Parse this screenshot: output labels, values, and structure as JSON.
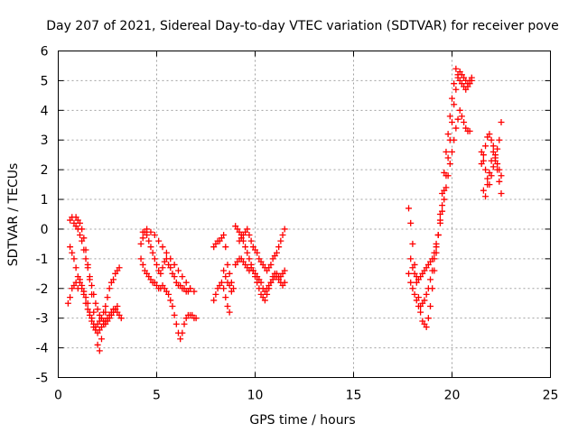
{
  "chart_data": {
    "type": "scatter",
    "title": "Day 207 of 2021, Sidereal Day-to-day VTEC variation (SDTVAR) for receiver pove",
    "xlabel": "GPS time / hours",
    "ylabel": "SDTVAR / TECUs",
    "xlim": [
      0,
      25
    ],
    "ylim": [
      -5,
      6
    ],
    "x_ticks": [
      "0",
      "5",
      "10",
      "15",
      "20",
      "25"
    ],
    "y_ticks": [
      "-5",
      "-4",
      "-3",
      "-2",
      "-1",
      "0",
      "1",
      "2",
      "3",
      "4",
      "5",
      "6"
    ],
    "grid": true,
    "marker": "+",
    "color": "#ff0000",
    "series": [
      {
        "x": [
          0.5,
          0.6,
          0.7,
          0.8,
          0.9,
          1.0,
          1.1,
          1.2,
          1.3,
          1.4,
          1.5,
          1.6,
          1.7,
          1.8,
          1.9,
          2.0,
          2.1,
          2.2,
          2.3,
          2.4,
          2.5,
          2.6,
          2.7,
          2.8,
          2.9,
          3.0,
          3.1,
          0.6,
          0.7,
          0.8,
          0.9,
          1.0,
          1.1,
          1.2,
          1.3,
          1.4,
          1.5,
          1.6,
          1.7,
          1.8,
          1.9,
          2.0,
          2.1,
          2.2,
          2.3,
          2.4,
          2.5,
          2.6,
          2.7,
          2.8,
          2.9,
          3.0,
          0.6,
          0.7,
          0.8,
          0.9,
          1.0,
          1.1,
          1.2,
          1.3,
          1.4,
          1.5,
          1.6,
          1.7,
          1.8,
          1.9,
          2.0,
          2.1,
          2.2,
          2.3,
          2.4,
          2.5,
          2.6,
          2.7,
          2.8,
          2.9,
          3.0,
          3.1,
          3.2,
          0.9,
          1.0,
          1.1,
          1.2,
          1.3,
          1.4,
          1.5,
          1.6,
          1.7,
          1.8,
          1.9,
          2.0,
          2.1,
          2.2,
          2.3,
          2.4
        ],
        "y": [
          -2.5,
          -2.3,
          -2.0,
          -1.9,
          -1.8,
          -2.0,
          -1.7,
          -1.9,
          -2.1,
          -2.3,
          -2.5,
          -2.8,
          -3.0,
          -3.2,
          -3.3,
          -3.2,
          -3.1,
          -3.0,
          -2.8,
          -2.6,
          -2.3,
          -2.0,
          -1.8,
          -1.7,
          -1.5,
          -1.4,
          -1.3,
          0.3,
          0.4,
          0.2,
          0.1,
          0.0,
          -0.2,
          -0.4,
          -0.7,
          -1.0,
          -1.3,
          -1.6,
          -1.9,
          -2.2,
          -2.5,
          -2.7,
          -2.9,
          -3.0,
          -3.1,
          -3.2,
          -3.1,
          -3.0,
          -2.9,
          -2.8,
          -2.7,
          -2.6,
          -0.6,
          -0.8,
          -1.0,
          -1.3,
          -1.6,
          -1.8,
          -2.0,
          -2.2,
          -2.5,
          -2.7,
          -2.9,
          -3.1,
          -3.3,
          -3.4,
          -3.5,
          -3.4,
          -3.3,
          -3.2,
          -3.1,
          -3.0,
          -2.9,
          -2.8,
          -2.7,
          -2.7,
          -2.8,
          -2.9,
          -3.0,
          0.4,
          0.3,
          0.2,
          0.0,
          -0.3,
          -0.7,
          -1.2,
          -1.7,
          -2.2,
          -2.8,
          -3.4,
          -3.9,
          -4.1,
          -3.7,
          -3.2,
          -2.8
        ]
      },
      {
        "x": [
          4.2,
          4.3,
          4.4,
          4.5,
          4.6,
          4.7,
          4.8,
          4.9,
          5.0,
          5.1,
          5.2,
          5.3,
          5.4,
          5.5,
          5.6,
          5.7,
          5.8,
          5.9,
          6.0,
          6.1,
          6.2,
          6.3,
          6.4,
          6.5,
          6.6,
          6.7,
          4.2,
          4.3,
          4.4,
          4.5,
          4.6,
          4.7,
          4.8,
          4.9,
          5.0,
          5.1,
          5.2,
          5.3,
          5.4,
          5.5,
          5.6,
          5.7,
          5.8,
          5.9,
          6.0,
          6.1,
          6.2,
          6.3,
          6.4,
          6.5,
          6.6,
          6.7,
          6.8,
          6.9,
          7.0,
          4.3,
          4.5,
          4.7,
          4.9,
          5.1,
          5.3,
          5.5,
          5.7,
          5.9,
          6.1,
          6.3,
          6.5,
          6.7,
          6.9
        ],
        "y": [
          -0.5,
          -0.3,
          -0.1,
          -0.2,
          -0.4,
          -0.6,
          -0.8,
          -1.0,
          -1.2,
          -1.4,
          -1.5,
          -1.3,
          -1.1,
          -1.0,
          -1.2,
          -1.3,
          -1.5,
          -1.6,
          -1.8,
          -1.9,
          -1.9,
          -2.0,
          -2.0,
          -2.1,
          -2.1,
          -2.0,
          -1.0,
          -1.2,
          -1.4,
          -1.5,
          -1.6,
          -1.7,
          -1.8,
          -1.8,
          -1.9,
          -2.0,
          -2.0,
          -1.9,
          -2.0,
          -2.1,
          -2.2,
          -2.4,
          -2.6,
          -2.9,
          -3.2,
          -3.5,
          -3.7,
          -3.5,
          -3.2,
          -3.0,
          -2.9,
          -2.9,
          -2.9,
          -3.0,
          -3.0,
          -0.1,
          0.0,
          -0.1,
          -0.2,
          -0.4,
          -0.6,
          -0.8,
          -1.0,
          -1.2,
          -1.4,
          -1.6,
          -1.8,
          -2.0,
          -2.1
        ]
      },
      {
        "x": [
          7.9,
          8.0,
          8.1,
          8.2,
          8.3,
          8.4,
          8.5,
          8.6,
          8.7,
          8.8,
          8.9,
          7.9,
          8.0,
          8.1,
          8.2,
          8.3,
          8.4,
          8.5,
          8.6,
          8.7,
          8.4,
          8.5,
          8.6,
          8.7,
          8.8
        ],
        "y": [
          -0.6,
          -0.5,
          -0.4,
          -0.4,
          -0.3,
          -0.2,
          -0.6,
          -1.2,
          -1.5,
          -1.8,
          -2.0,
          -2.4,
          -2.2,
          -2.0,
          -1.9,
          -1.8,
          -2.0,
          -2.3,
          -2.6,
          -2.8,
          -1.4,
          -1.6,
          -1.8,
          -1.9,
          -2.1
        ]
      },
      {
        "x": [
          9.0,
          9.1,
          9.2,
          9.3,
          9.4,
          9.5,
          9.6,
          9.7,
          9.8,
          9.9,
          10.0,
          10.1,
          10.2,
          10.3,
          10.4,
          10.5,
          10.6,
          10.7,
          10.8,
          10.9,
          11.0,
          11.1,
          11.2,
          11.3,
          11.4,
          11.5,
          9.0,
          9.1,
          9.2,
          9.3,
          9.4,
          9.5,
          9.6,
          9.7,
          9.8,
          9.9,
          10.0,
          10.1,
          10.2,
          10.3,
          10.4,
          10.5,
          10.6,
          10.7,
          10.8,
          10.9,
          11.0,
          11.1,
          11.2,
          11.3,
          11.4,
          11.5,
          9.2,
          9.3,
          9.4,
          9.5,
          9.6,
          9.7,
          9.8,
          9.9,
          10.0,
          10.1,
          10.2,
          10.3,
          10.4,
          10.5,
          10.6,
          10.7,
          10.8,
          10.9,
          11.0,
          11.1,
          11.2,
          11.3,
          11.4,
          11.5
        ],
        "y": [
          0.1,
          0.0,
          -0.1,
          -0.2,
          -0.4,
          -0.6,
          -0.8,
          -1.0,
          -1.2,
          -1.4,
          -1.6,
          -1.8,
          -2.0,
          -2.2,
          -2.3,
          -2.4,
          -2.2,
          -2.0,
          -1.8,
          -1.6,
          -1.5,
          -1.5,
          -1.6,
          -1.6,
          -1.5,
          -1.4,
          -1.2,
          -1.1,
          -1.0,
          -1.0,
          -1.1,
          -1.2,
          -1.3,
          -1.4,
          -1.3,
          -1.4,
          -1.5,
          -1.6,
          -1.7,
          -1.8,
          -2.0,
          -2.1,
          -2.0,
          -1.9,
          -1.8,
          -1.7,
          -1.6,
          -1.6,
          -1.7,
          -1.8,
          -1.9,
          -1.8,
          -0.4,
          -0.3,
          -0.2,
          -0.1,
          0.0,
          -0.2,
          -0.4,
          -0.6,
          -0.7,
          -0.8,
          -1.0,
          -1.1,
          -1.2,
          -1.3,
          -1.4,
          -1.3,
          -1.2,
          -1.0,
          -0.9,
          -0.8,
          -0.6,
          -0.4,
          -0.2,
          -0.0
        ]
      },
      {
        "x": [
          17.8,
          17.9,
          18.0,
          18.1,
          18.2,
          18.3,
          18.4,
          18.5,
          18.6,
          18.7,
          18.8,
          18.9,
          19.0,
          19.1,
          19.2,
          19.3,
          19.4,
          19.5,
          19.6,
          19.7,
          19.8,
          19.9,
          20.0,
          20.1,
          20.2,
          20.3,
          20.4,
          20.5,
          20.6,
          20.7,
          20.8,
          20.9,
          21.0,
          17.9,
          18.0,
          18.1,
          18.2,
          18.3,
          18.4,
          18.5,
          18.6,
          18.7,
          18.8,
          18.9,
          19.0,
          19.1,
          19.2,
          19.3,
          19.4,
          19.5,
          19.6,
          19.7,
          19.8,
          19.9,
          20.0,
          20.1,
          20.2,
          20.3,
          20.4,
          20.5,
          20.6,
          20.7,
          20.8,
          20.9,
          17.8,
          17.9,
          18.0,
          18.1,
          18.2,
          18.3,
          18.4,
          18.5,
          18.6,
          18.7,
          18.8,
          18.9,
          19.0,
          19.1,
          19.2,
          19.3,
          19.4,
          19.5,
          19.6,
          19.7,
          19.8,
          19.9,
          20.0,
          20.1,
          20.2,
          20.3,
          20.4,
          20.5,
          20.6,
          20.7,
          20.8,
          20.9,
          21.0
        ],
        "y": [
          0.7,
          0.2,
          -0.5,
          -1.2,
          -1.8,
          -2.3,
          -2.8,
          -3.1,
          -3.2,
          -3.3,
          -3.0,
          -2.6,
          -2.0,
          -1.4,
          -0.8,
          -0.2,
          0.5,
          1.2,
          1.9,
          2.6,
          3.2,
          3.8,
          4.4,
          4.9,
          5.4,
          5.2,
          5.0,
          4.9,
          4.8,
          4.7,
          4.8,
          5.0,
          5.1,
          -1.0,
          -1.3,
          -1.5,
          -1.6,
          -1.7,
          -1.6,
          -1.5,
          -1.4,
          -1.3,
          -1.2,
          -1.1,
          -1.0,
          -0.8,
          -0.5,
          -0.2,
          0.2,
          0.6,
          1.0,
          1.4,
          1.8,
          2.2,
          2.6,
          3.0,
          3.4,
          3.7,
          4.0,
          3.8,
          3.6,
          3.4,
          3.3,
          3.3,
          -1.5,
          -1.8,
          -2.0,
          -2.2,
          -2.4,
          -2.6,
          -2.6,
          -2.5,
          -2.4,
          -2.2,
          -2.0,
          -1.7,
          -1.4,
          -1.0,
          -0.6,
          -0.2,
          0.3,
          0.8,
          1.3,
          1.8,
          2.4,
          3.0,
          3.6,
          4.2,
          4.7,
          5.1,
          5.3,
          5.2,
          5.1,
          5.0,
          4.9,
          4.9,
          5.0
        ]
      },
      {
        "x": [
          21.5,
          21.6,
          21.7,
          21.8,
          21.9,
          22.0,
          22.1,
          22.2,
          22.3,
          22.4,
          22.5,
          21.5,
          21.6,
          21.7,
          21.8,
          21.9,
          22.0,
          22.1,
          22.2,
          22.3,
          22.4,
          22.5,
          21.6,
          21.7,
          21.8,
          21.9,
          22.0,
          22.1,
          22.2,
          22.3,
          22.4,
          22.5
        ],
        "y": [
          2.6,
          2.3,
          2.0,
          1.7,
          1.5,
          1.8,
          2.1,
          2.4,
          2.7,
          3.0,
          3.6,
          2.2,
          2.5,
          2.8,
          3.1,
          3.2,
          3.0,
          2.8,
          2.5,
          2.2,
          2.0,
          1.8,
          1.3,
          1.1,
          1.5,
          1.9,
          2.3,
          2.6,
          2.3,
          2.0,
          1.6,
          1.2
        ]
      }
    ]
  }
}
